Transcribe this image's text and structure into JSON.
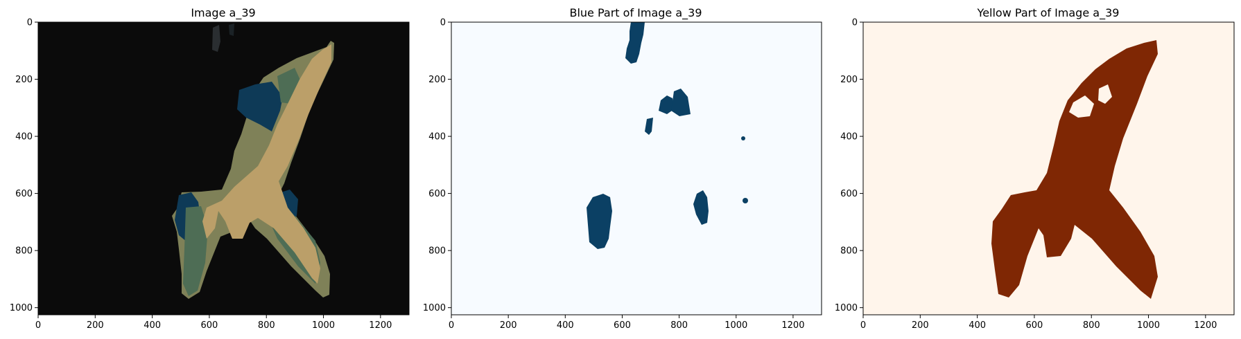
{
  "figure": {
    "panels": [
      {
        "title": "Image a_39",
        "colormap": "image"
      },
      {
        "title": "Blue Part of Image a_39",
        "colormap": "blues"
      },
      {
        "title": "Yellow Part of Image a_39",
        "colormap": "oranges"
      }
    ]
  },
  "chart_data": [
    {
      "type": "image",
      "title": "Image a_39",
      "xlim": [
        0,
        1300
      ],
      "ylim": [
        1025,
        0
      ],
      "xticks": [
        0,
        200,
        400,
        600,
        800,
        1000,
        1200
      ],
      "yticks": [
        0,
        200,
        400,
        600,
        800,
        1000
      ],
      "colors": {
        "background": "#0b0b0b",
        "olive": "#7f8158",
        "tan": "#bb9f69",
        "blue": "#0e3a57",
        "green": "#4e6d55"
      }
    },
    {
      "type": "image",
      "title": "Blue Part of Image a_39",
      "xlim": [
        0,
        1300
      ],
      "ylim": [
        1025,
        0
      ],
      "xticks": [
        0,
        200,
        400,
        600,
        800,
        1000,
        1200
      ],
      "yticks": [
        0,
        200,
        400,
        600,
        800,
        1000
      ],
      "colors": {
        "background": "#f7fbff",
        "mask": "#0b4064"
      }
    },
    {
      "type": "image",
      "title": "Yellow Part of Image a_39",
      "xlim": [
        0,
        1300
      ],
      "ylim": [
        1025,
        0
      ],
      "xticks": [
        0,
        200,
        400,
        600,
        800,
        1000,
        1200
      ],
      "yticks": [
        0,
        200,
        400,
        600,
        800,
        1000
      ],
      "colors": {
        "background": "#fff5eb",
        "mask": "#7f2704"
      }
    }
  ]
}
